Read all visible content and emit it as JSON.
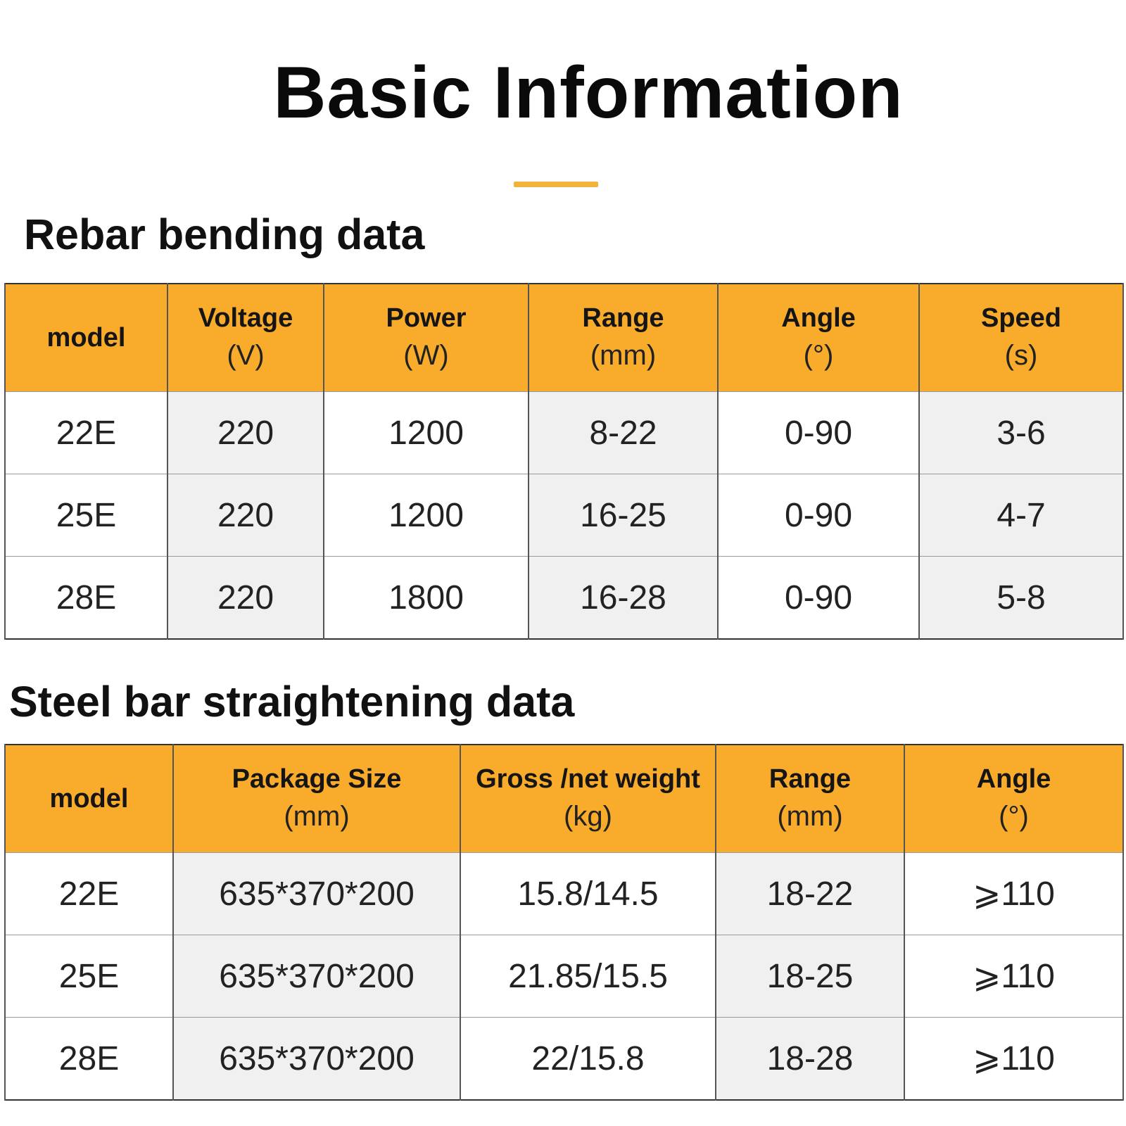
{
  "page": {
    "title": "Basic Information",
    "accent_color": "#efb43a",
    "header_color": "#f9ac2b"
  },
  "bending": {
    "title": "Rebar bending data",
    "headers": [
      {
        "name": "model",
        "unit": ""
      },
      {
        "name": "Voltage",
        "unit": "(V)"
      },
      {
        "name": "Power",
        "unit": "(W)"
      },
      {
        "name": "Range",
        "unit": "(mm)"
      },
      {
        "name": "Angle",
        "unit": "(°)"
      },
      {
        "name": "Speed",
        "unit": "(s)"
      }
    ],
    "rows": [
      [
        "22E",
        "220",
        "1200",
        "8-22",
        "0-90",
        "3-6"
      ],
      [
        "25E",
        "220",
        "1200",
        "16-25",
        "0-90",
        "4-7"
      ],
      [
        "28E",
        "220",
        "1800",
        "16-28",
        "0-90",
        "5-8"
      ]
    ]
  },
  "straightening": {
    "title": "Steel bar straightening data",
    "headers": [
      {
        "name": "model",
        "unit": ""
      },
      {
        "name": "Package Size",
        "unit": "(mm)"
      },
      {
        "name": "Gross /net weight",
        "unit": "(kg)"
      },
      {
        "name": "Range",
        "unit": "(mm)"
      },
      {
        "name": "Angle",
        "unit": "(°)"
      }
    ],
    "rows": [
      [
        "22E",
        "635*370*200",
        "15.8/14.5",
        "18-22",
        "⩾110"
      ],
      [
        "25E",
        "635*370*200",
        "21.85/15.5",
        "18-25",
        "⩾110"
      ],
      [
        "28E",
        "635*370*200",
        "22/15.8",
        "18-28",
        "⩾110"
      ]
    ]
  }
}
